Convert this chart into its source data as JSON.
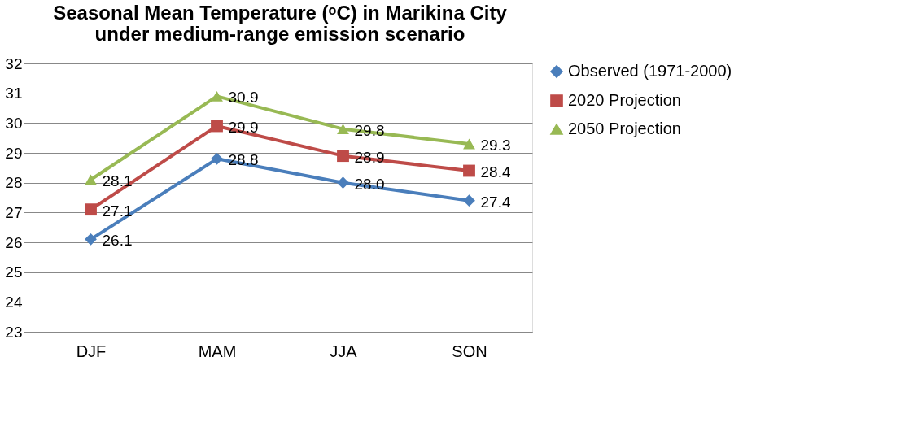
{
  "chart_data": {
    "type": "line",
    "title": "Seasonal Mean Temperature (ᵒC) in Marikina City\nunder medium-range emission scenario",
    "categories": [
      "DJF",
      "MAM",
      "JJA",
      "SON"
    ],
    "series": [
      {
        "name": "Observed (1971-2000)",
        "color": "#4a7ebb",
        "marker": "diamond",
        "values": [
          26.1,
          28.8,
          28.0,
          27.4
        ],
        "value_labels": [
          "26.1",
          "28.8",
          "28.0",
          "27.4"
        ]
      },
      {
        "name": "2020 Projection",
        "color": "#be4b48",
        "marker": "square",
        "values": [
          27.1,
          29.9,
          28.9,
          28.4
        ],
        "value_labels": [
          "27.1",
          "29.9",
          "28.9",
          "28.4"
        ]
      },
      {
        "name": "2050 Projection",
        "color": "#98b954",
        "marker": "triangle",
        "values": [
          28.1,
          30.9,
          29.8,
          29.3
        ],
        "value_labels": [
          "28.1",
          "30.9",
          "29.8",
          "29.3"
        ]
      }
    ],
    "ylim": [
      23,
      32
    ],
    "yticks": [
      23,
      24,
      25,
      26,
      27,
      28,
      29,
      30,
      31,
      32
    ],
    "grid": "y",
    "legend": "right",
    "line_style": "solid"
  }
}
